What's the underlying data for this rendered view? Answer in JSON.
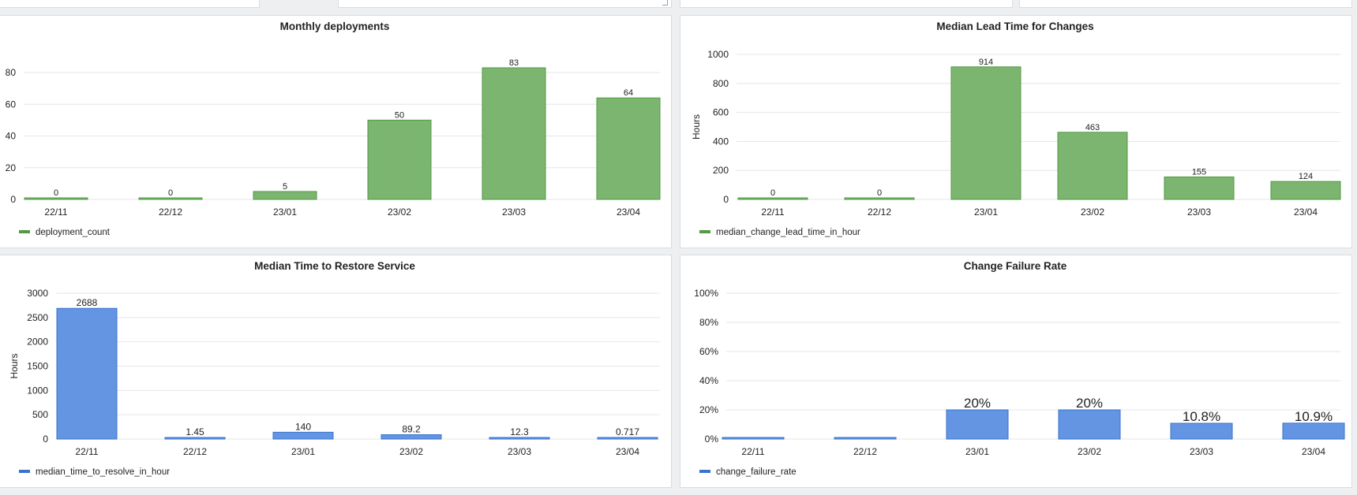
{
  "colors": {
    "green": "#7cb56f",
    "green_stroke": "#519a43",
    "blue": "#6395e3",
    "blue_stroke": "#3a72cc",
    "grid": "#e6e6e6",
    "text": "#222222",
    "background": "#eeeff1"
  },
  "chart_data": [
    {
      "id": "monthly-deployments",
      "type": "bar",
      "title": "Monthly deployments",
      "ylabel": "",
      "categories": [
        "22/11",
        "22/12",
        "23/01",
        "23/02",
        "23/03",
        "23/04"
      ],
      "series": [
        {
          "name": "deployment_count",
          "values": [
            0,
            0,
            5,
            50,
            83,
            64
          ]
        }
      ],
      "data_labels": [
        "0",
        "0",
        "5",
        "50",
        "83",
        "64"
      ],
      "yticks": [
        0,
        20,
        40,
        60,
        80
      ],
      "ytick_labels": [
        "0",
        "20",
        "40",
        "60",
        "80"
      ],
      "ylim": [
        0,
        83
      ],
      "color": "green",
      "legend": "bottom-left",
      "grid": true
    },
    {
      "id": "median-lead-time",
      "type": "bar",
      "title": "Median Lead Time for Changes",
      "ylabel": "Hours",
      "categories": [
        "22/11",
        "22/12",
        "23/01",
        "23/02",
        "23/03",
        "23/04"
      ],
      "series": [
        {
          "name": "median_change_lead_time_in_hour",
          "values": [
            0,
            0,
            914,
            463,
            155,
            124
          ]
        }
      ],
      "data_labels": [
        "0",
        "0",
        "914",
        "463",
        "155",
        "124"
      ],
      "yticks": [
        0,
        200,
        400,
        600,
        800,
        1000
      ],
      "ytick_labels": [
        "0",
        "200",
        "400",
        "600",
        "800",
        "1000"
      ],
      "ylim": [
        0,
        1000
      ],
      "color": "green",
      "legend": "bottom-left",
      "grid": true
    },
    {
      "id": "median-time-to-restore",
      "type": "bar",
      "title": "Median Time to Restore Service",
      "ylabel": "Hours",
      "categories": [
        "22/11",
        "22/12",
        "23/01",
        "23/02",
        "23/03",
        "23/04"
      ],
      "series": [
        {
          "name": "median_time_to_resolve_in_hour",
          "values": [
            2688,
            1.45,
            140,
            89.2,
            12.3,
            0.717
          ]
        }
      ],
      "data_labels": [
        "2688",
        "1.45",
        "140",
        "89.2",
        "12.3",
        "0.717"
      ],
      "yticks": [
        0,
        500,
        1000,
        1500,
        2000,
        2500,
        3000
      ],
      "ytick_labels": [
        "0",
        "500",
        "1000",
        "1500",
        "2000",
        "2500",
        "3000"
      ],
      "ylim": [
        0,
        3000
      ],
      "color": "blue",
      "legend": "bottom-left",
      "grid": true
    },
    {
      "id": "change-failure-rate",
      "type": "bar",
      "title": "Change Failure Rate",
      "ylabel": "",
      "categories": [
        "22/11",
        "22/12",
        "23/01",
        "23/02",
        "23/03",
        "23/04"
      ],
      "series": [
        {
          "name": "change_failure_rate",
          "values": [
            0,
            0,
            0.2,
            0.2,
            0.108,
            0.109
          ]
        }
      ],
      "data_labels": [
        "",
        "",
        "20%",
        "20%",
        "10.8%",
        "10.9%"
      ],
      "yticks": [
        0,
        0.2,
        0.4,
        0.6,
        0.8,
        1.0
      ],
      "ytick_labels": [
        "0%",
        "20%",
        "40%",
        "60%",
        "80%",
        "100%"
      ],
      "ylim": [
        0,
        1.0
      ],
      "color": "blue",
      "legend": "bottom-left",
      "grid": true
    }
  ]
}
